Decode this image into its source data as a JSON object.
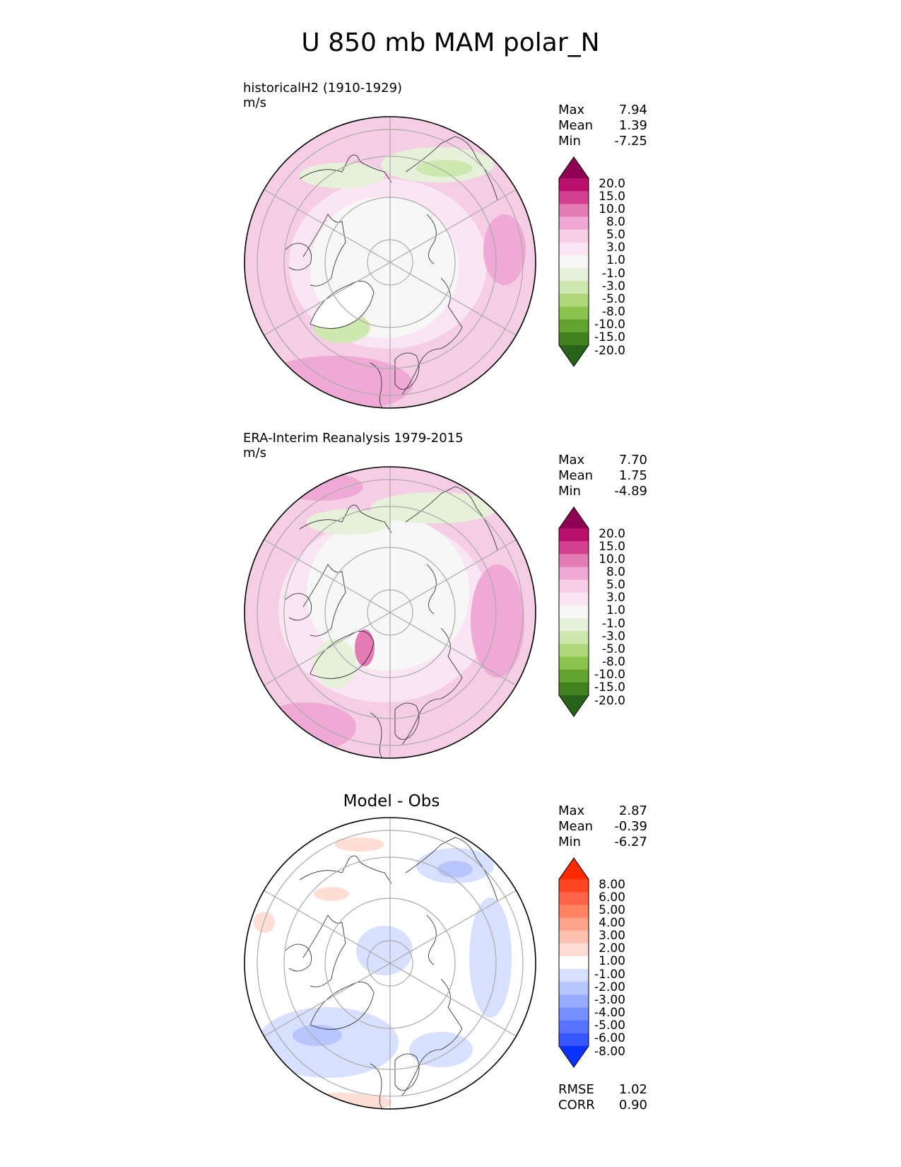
{
  "figure": {
    "title": "U 850 mb MAM polar_N"
  },
  "panels": [
    {
      "id": "model",
      "subtitle": "historicalH2 (1910-1929)",
      "units": "m/s",
      "stats": [
        {
          "label": "Max",
          "value": "7.94"
        },
        {
          "label": "Mean",
          "value": "1.39"
        },
        {
          "label": "Min",
          "value": "-7.25"
        }
      ],
      "colorbar": {
        "labels": [
          "20.0",
          "15.0",
          "10.0",
          "8.0",
          "5.0",
          "3.0",
          "1.0",
          "-1.0",
          "-3.0",
          "-5.0",
          "-8.0",
          "-10.0",
          "-15.0",
          "-20.0"
        ],
        "colors": [
          "#8e0152",
          "#b8106c",
          "#d0408f",
          "#e37cb4",
          "#eeaad4",
          "#f6cce6",
          "#fae6f2",
          "#f7f7f7",
          "#e5f2d9",
          "#cfe8b0",
          "#aed87a",
          "#8bc34f",
          "#63a330",
          "#41821f",
          "#276419"
        ]
      },
      "stat_values": {
        "max": 7.94,
        "mean": 1.39,
        "min": -7.25
      }
    },
    {
      "id": "obs",
      "subtitle": "ERA-Interim Reanalysis 1979-2015",
      "units": "m/s",
      "stats": [
        {
          "label": "Max",
          "value": "7.70"
        },
        {
          "label": "Mean",
          "value": "1.75"
        },
        {
          "label": "Min",
          "value": "-4.89"
        }
      ],
      "colorbar": {
        "labels": [
          "20.0",
          "15.0",
          "10.0",
          "8.0",
          "5.0",
          "3.0",
          "1.0",
          "-1.0",
          "-3.0",
          "-5.0",
          "-8.0",
          "-10.0",
          "-15.0",
          "-20.0"
        ],
        "colors": [
          "#8e0152",
          "#b8106c",
          "#d0408f",
          "#e37cb4",
          "#eeaad4",
          "#f6cce6",
          "#fae6f2",
          "#f7f7f7",
          "#e5f2d9",
          "#cfe8b0",
          "#aed87a",
          "#8bc34f",
          "#63a330",
          "#41821f",
          "#276419"
        ]
      },
      "stat_values": {
        "max": 7.7,
        "mean": 1.75,
        "min": -4.89
      }
    },
    {
      "id": "diff",
      "title": "Model - Obs",
      "stats": [
        {
          "label": "Max",
          "value": "2.87"
        },
        {
          "label": "Mean",
          "value": "-0.39"
        },
        {
          "label": "Min",
          "value": "-6.27"
        }
      ],
      "extra_stats": [
        {
          "label": "RMSE",
          "value": "1.02"
        },
        {
          "label": "CORR",
          "value": "0.90"
        }
      ],
      "colorbar": {
        "labels": [
          "8.00",
          "6.00",
          "5.00",
          "4.00",
          "3.00",
          "2.00",
          "1.00",
          "-1.00",
          "-2.00",
          "-3.00",
          "-4.00",
          "-5.00",
          "-6.00",
          "-8.00"
        ],
        "colors": [
          "#ff2a00",
          "#ff4422",
          "#ff6446",
          "#ff8466",
          "#ffa38a",
          "#ffc1b0",
          "#ffded5",
          "#ffffff",
          "#d8e0ff",
          "#b8c6ff",
          "#98acff",
          "#7890ff",
          "#5874ff",
          "#3856ff",
          "#0a32ff"
        ]
      },
      "stat_values": {
        "max": 2.87,
        "mean": -0.39,
        "min": -6.27
      }
    }
  ]
}
